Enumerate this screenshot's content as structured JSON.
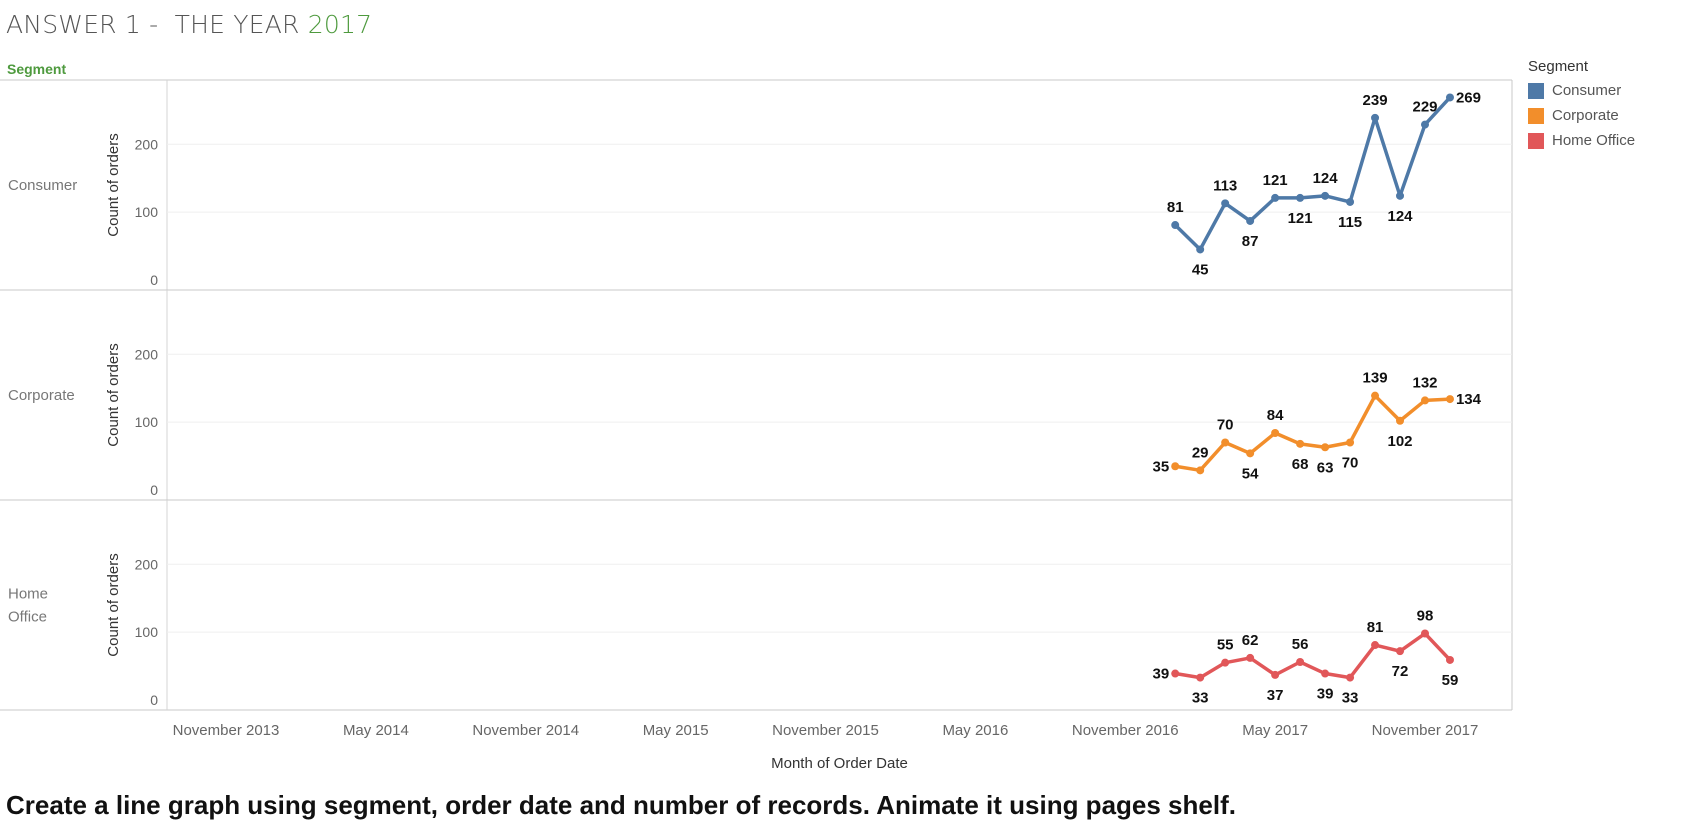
{
  "header": {
    "title_prefix": "ANSWER 1 -  THE YEAR ",
    "title_year": "2017",
    "segment_header": "Segment"
  },
  "legend": {
    "title": "Segment",
    "items": [
      {
        "label": "Consumer",
        "color": "#4e79a7"
      },
      {
        "label": "Corporate",
        "color": "#f28e2b"
      },
      {
        "label": "Home Office",
        "color": "#e15759"
      }
    ]
  },
  "instruction": "Create a line graph using segment, order date and number of records. Animate it using pages shelf.",
  "chart_data": {
    "type": "line",
    "title": "",
    "xlabel": "Month of Order Date",
    "ylabel": "Count of orders",
    "xlim": [
      "2013-11",
      "2017-12"
    ],
    "ylim": [
      0,
      280
    ],
    "yticks": [
      0,
      100,
      200
    ],
    "x_ticks": [
      {
        "date": "2013-11",
        "label": "November 2013"
      },
      {
        "date": "2014-05",
        "label": "May 2014"
      },
      {
        "date": "2014-11",
        "label": "November 2014"
      },
      {
        "date": "2015-05",
        "label": "May 2015"
      },
      {
        "date": "2015-11",
        "label": "November 2015"
      },
      {
        "date": "2016-05",
        "label": "May 2016"
      },
      {
        "date": "2016-11",
        "label": "November 2016"
      },
      {
        "date": "2017-05",
        "label": "May 2017"
      },
      {
        "date": "2017-11",
        "label": "November 2017"
      }
    ],
    "x": [
      "2017-01",
      "2017-02",
      "2017-03",
      "2017-04",
      "2017-05",
      "2017-06",
      "2017-07",
      "2017-08",
      "2017-09",
      "2017-10",
      "2017-11",
      "2017-12"
    ],
    "grid": true,
    "legend_position": "right",
    "series": [
      {
        "name": "Consumer",
        "row_label": [
          "Consumer"
        ],
        "color": "#4e79a7",
        "values": [
          81,
          45,
          113,
          87,
          121,
          121,
          124,
          115,
          239,
          124,
          229,
          269
        ],
        "label_values": [
          "81",
          "45",
          "113",
          "87",
          "121",
          "121",
          "124",
          "115",
          "239",
          "124",
          "229",
          "269"
        ],
        "label_pos": [
          "above",
          "below",
          "above",
          "below",
          "above",
          "below",
          "above",
          "below",
          "above",
          "below",
          "above",
          "right"
        ]
      },
      {
        "name": "Corporate",
        "row_label": [
          "Corporate"
        ],
        "color": "#f28e2b",
        "values": [
          35,
          29,
          70,
          54,
          84,
          68,
          63,
          70,
          139,
          102,
          132,
          134
        ],
        "label_values": [
          "35",
          "29",
          "70",
          "54",
          "84",
          "68",
          "63",
          "70",
          "139",
          "102",
          "132",
          "134"
        ],
        "label_pos": [
          "left",
          "above",
          "above",
          "below",
          "above",
          "below",
          "below",
          "below",
          "above",
          "below",
          "above",
          "right"
        ]
      },
      {
        "name": "Home Office",
        "row_label": [
          "Home",
          "Office"
        ],
        "color": "#e15759",
        "values": [
          39,
          33,
          55,
          62,
          37,
          56,
          39,
          33,
          81,
          72,
          98,
          59
        ],
        "label_values": [
          "39",
          "33",
          "55",
          "62",
          "37",
          "56",
          "39",
          "33",
          "81",
          "72",
          "98",
          "59"
        ],
        "label_pos": [
          "left",
          "below",
          "above",
          "above",
          "below",
          "above",
          "below",
          "below",
          "above",
          "below",
          "above",
          "below"
        ]
      }
    ]
  }
}
